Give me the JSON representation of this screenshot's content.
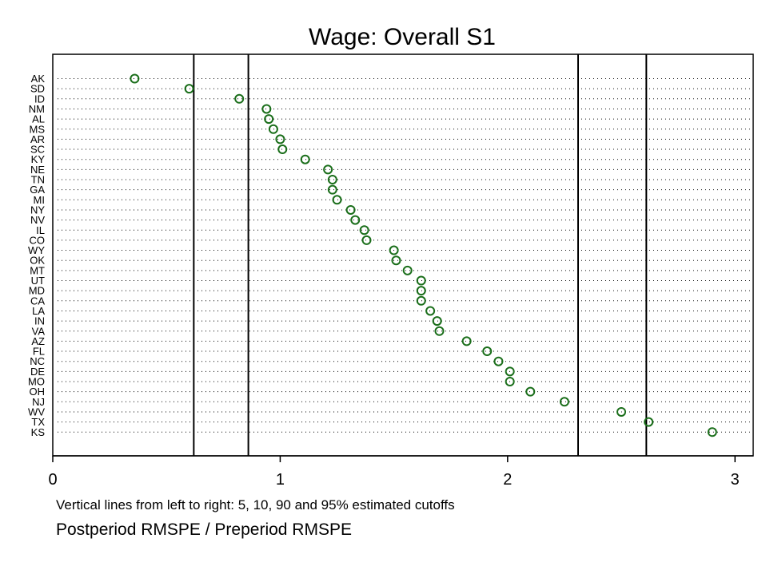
{
  "chart_data": {
    "type": "scatter",
    "title": "Wage: Overall S1",
    "xlabel": "Postperiod RMSPE / Preperiod RMSPE",
    "note": "Vertical lines from left to right: 5, 10, 90 and 95% estimated cutoffs",
    "xlim": [
      0,
      3.08
    ],
    "xticks": [
      0,
      1,
      2,
      3
    ],
    "cutoffs": [
      0.62,
      0.86,
      2.31,
      2.61
    ],
    "marker_color": "#1a6e1a",
    "grid": "dotted horizontal",
    "categories": [
      "AK",
      "SD",
      "ID",
      "NM",
      "AL",
      "MS",
      "AR",
      "SC",
      "KY",
      "NE",
      "TN",
      "GA",
      "MI",
      "NY",
      "NV",
      "IL",
      "CO",
      "WY",
      "OK",
      "MT",
      "UT",
      "MD",
      "CA",
      "LA",
      "IN",
      "VA",
      "AZ",
      "FL",
      "NC",
      "DE",
      "MO",
      "OH",
      "NJ",
      "WV",
      "TX",
      "KS"
    ],
    "values": [
      0.36,
      0.6,
      0.82,
      0.94,
      0.95,
      0.97,
      1.0,
      1.01,
      1.11,
      1.21,
      1.23,
      1.23,
      1.25,
      1.31,
      1.33,
      1.37,
      1.38,
      1.5,
      1.51,
      1.56,
      1.62,
      1.62,
      1.62,
      1.66,
      1.69,
      1.7,
      1.82,
      1.91,
      1.96,
      2.01,
      2.01,
      2.1,
      2.25,
      2.5,
      2.62,
      2.9
    ]
  }
}
